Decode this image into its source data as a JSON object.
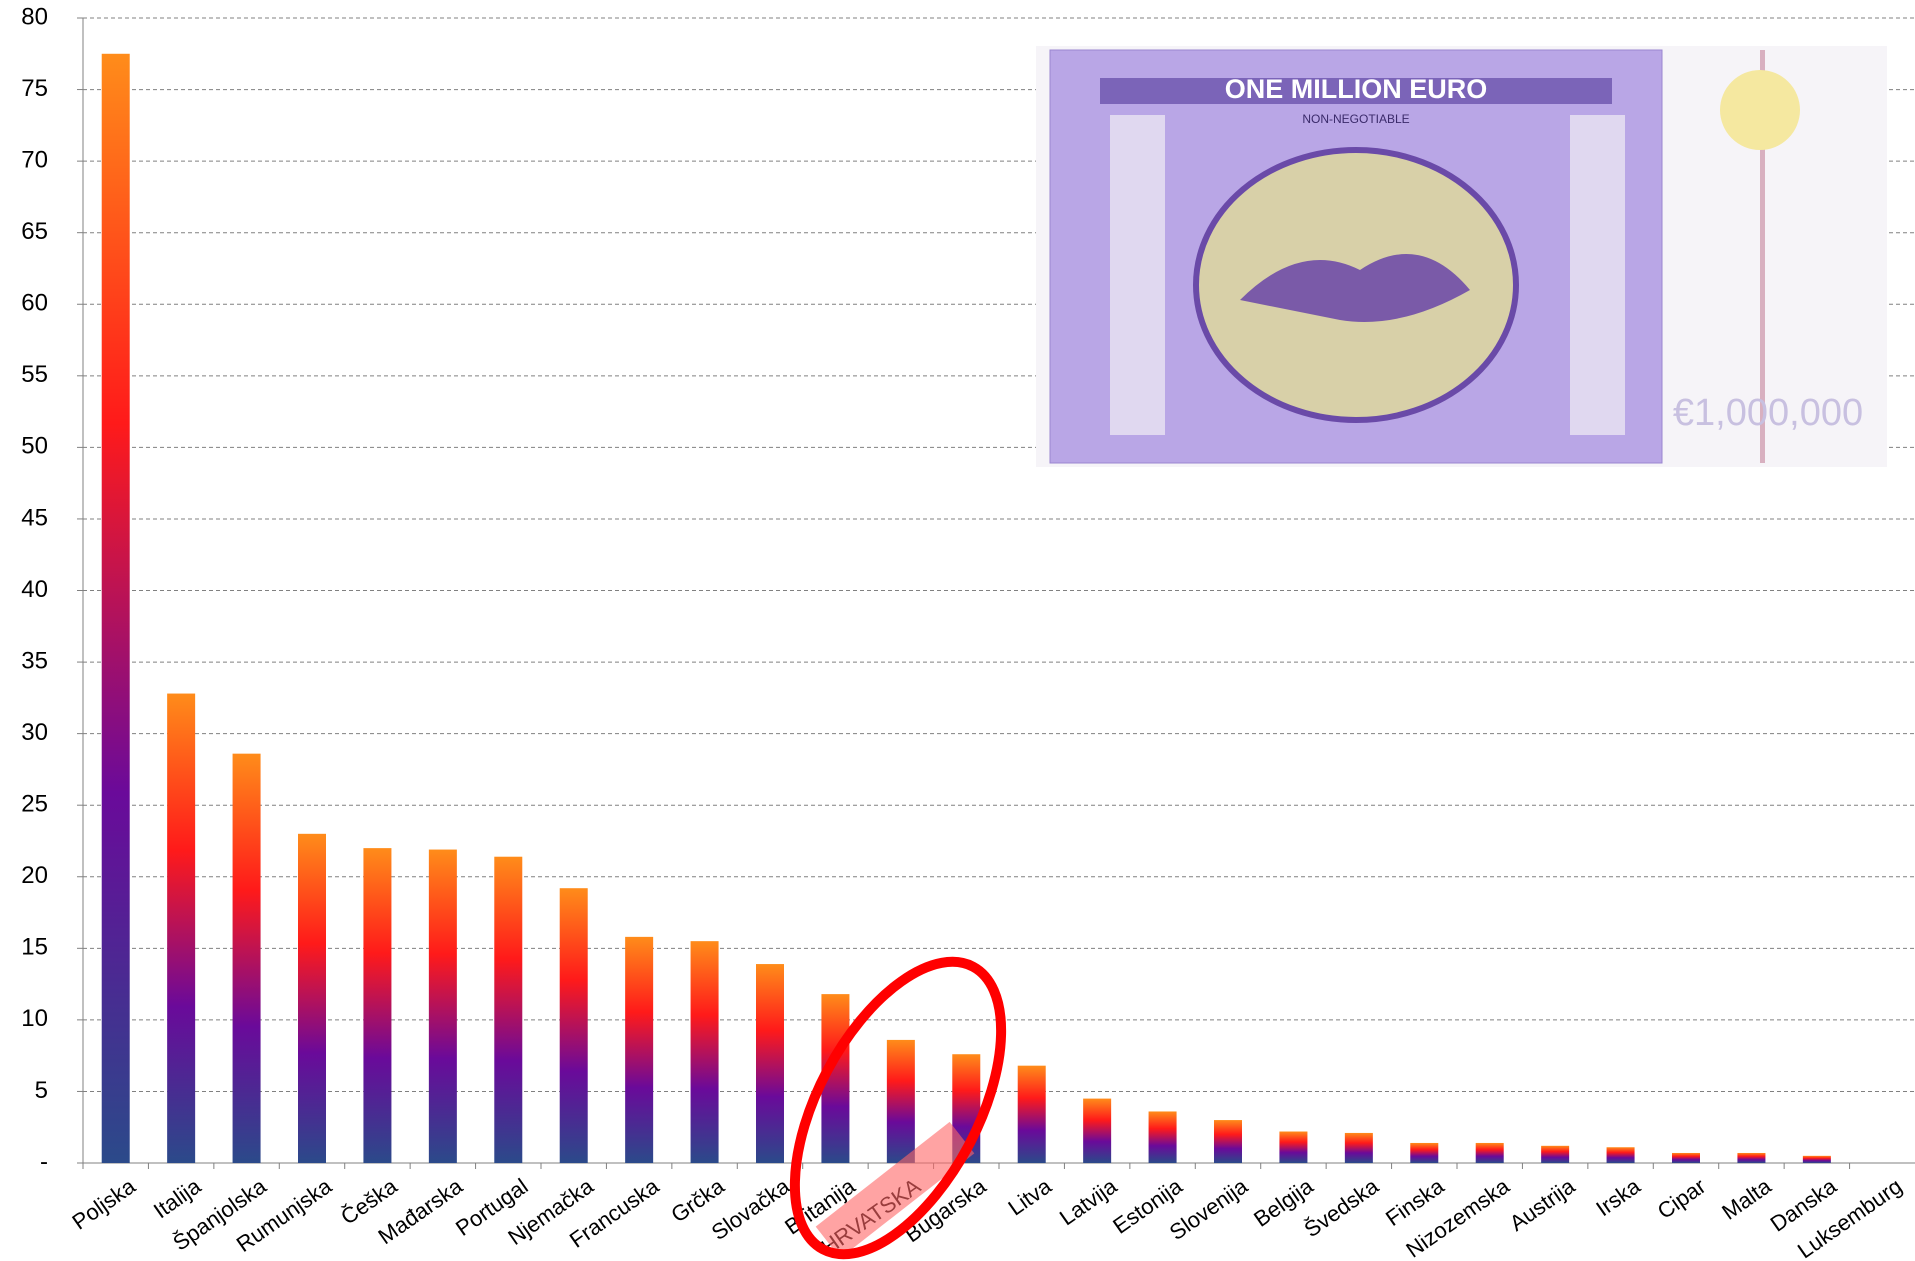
{
  "chart_data": {
    "type": "bar",
    "categories": [
      "Poljska",
      "Italija",
      "Španjolska",
      "Rumunjska",
      "Češka",
      "Mađarska",
      "Portugal",
      "Njemačka",
      "Francuska",
      "Grčka",
      "Slovačka",
      "Britanija",
      "HRVATSKA",
      "Bugarska",
      "Litva",
      "Latvija",
      "Estonija",
      "Slovenija",
      "Belgija",
      "Švedska",
      "Finska",
      "Nizozemska",
      "Austrija",
      "Irska",
      "Cipar",
      "Malta",
      "Danska",
      "Luksemburg"
    ],
    "values": [
      77.5,
      32.8,
      28.6,
      23,
      22,
      21.9,
      21.4,
      19.2,
      15.8,
      15.5,
      13.9,
      11.8,
      8.6,
      7.6,
      6.8,
      4.5,
      3.6,
      3.0,
      2.2,
      2.1,
      1.4,
      1.4,
      1.2,
      1.1,
      0.7,
      0.7,
      0.5,
      0
    ],
    "gradient": [
      "#2b4a8a",
      "#6a0a9a",
      "#ff1a1a",
      "#ff8c1a"
    ],
    "ylim": [
      0,
      80
    ],
    "yticks": [
      {
        "value": 0,
        "label": "-"
      },
      5,
      10,
      15,
      20,
      25,
      30,
      35,
      40,
      45,
      50,
      55,
      60,
      65,
      70,
      75,
      80
    ],
    "grid": true
  },
  "image": {
    "title": "ONE MILLION EURO",
    "subtitle": "NON-NEGOTIABLE",
    "amount": "€1,000,000"
  }
}
